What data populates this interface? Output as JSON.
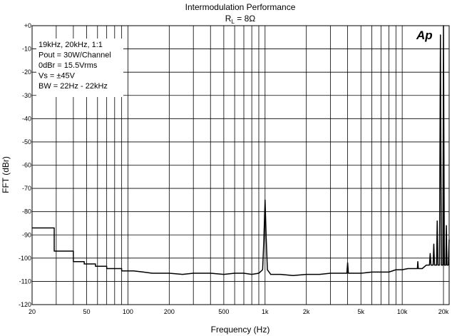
{
  "chart_data": {
    "type": "line",
    "title": "Intermodulation Performance",
    "subtitle_main": "R",
    "subtitle_sub": "L",
    "subtitle_rest": " = 8Ω",
    "xlabel": "Frequency (Hz)",
    "ylabel": "FFT (dBr)",
    "xscale": "log",
    "xlim": [
      20,
      22000
    ],
    "ylim": [
      -120,
      0
    ],
    "grid": true,
    "logo": "Ap",
    "annotations": [
      "19kHz, 20kHz, 1:1",
      "Pout = 30W/Channel",
      "0dBr = 15.5Vrms",
      "Vs = ±45V",
      "BW = 22Hz - 22kHz"
    ],
    "x_ticks": [
      {
        "value": 20,
        "label": "20"
      },
      {
        "value": 50,
        "label": "50"
      },
      {
        "value": 100,
        "label": "100"
      },
      {
        "value": 200,
        "label": "200"
      },
      {
        "value": 500,
        "label": "500"
      },
      {
        "value": 1000,
        "label": "1k"
      },
      {
        "value": 2000,
        "label": "2k"
      },
      {
        "value": 5000,
        "label": "5k"
      },
      {
        "value": 10000,
        "label": "10k"
      },
      {
        "value": 20000,
        "label": "20k"
      }
    ],
    "y_ticks": [
      {
        "value": 0,
        "label": "+0"
      },
      {
        "value": -10,
        "label": "-10"
      },
      {
        "value": -20,
        "label": "-20"
      },
      {
        "value": -30,
        "label": "-30"
      },
      {
        "value": -40,
        "label": "-40"
      },
      {
        "value": -50,
        "label": "-50"
      },
      {
        "value": -60,
        "label": "-60"
      },
      {
        "value": -70,
        "label": "-70"
      },
      {
        "value": -80,
        "label": "-80"
      },
      {
        "value": -90,
        "label": "-90"
      },
      {
        "value": -100,
        "label": "-100"
      },
      {
        "value": -110,
        "label": "-110"
      },
      {
        "value": -120,
        "label": "-120"
      }
    ],
    "series": [
      {
        "color": "#000000",
        "points": [
          [
            20,
            -87
          ],
          [
            29,
            -87
          ],
          [
            29,
            -97
          ],
          [
            40,
            -97
          ],
          [
            40,
            -101.5
          ],
          [
            48,
            -101.5
          ],
          [
            48,
            -102.5
          ],
          [
            58,
            -102.5
          ],
          [
            58,
            -103.5
          ],
          [
            70,
            -103.5
          ],
          [
            70,
            -104.5
          ],
          [
            90,
            -104.5
          ],
          [
            90,
            -105.5
          ],
          [
            110,
            -105.5
          ],
          [
            130,
            -106
          ],
          [
            150,
            -106.5
          ],
          [
            200,
            -106.5
          ],
          [
            250,
            -107
          ],
          [
            300,
            -106.5
          ],
          [
            400,
            -106.5
          ],
          [
            500,
            -107
          ],
          [
            600,
            -106.5
          ],
          [
            700,
            -106.5
          ],
          [
            800,
            -107
          ],
          [
            900,
            -106.5
          ],
          [
            960,
            -105
          ],
          [
            980,
            -92
          ],
          [
            1000,
            -75
          ],
          [
            1020,
            -92
          ],
          [
            1040,
            -105
          ],
          [
            1100,
            -107
          ],
          [
            1300,
            -107
          ],
          [
            1600,
            -107.5
          ],
          [
            2000,
            -107
          ],
          [
            2500,
            -107
          ],
          [
            3000,
            -106.5
          ],
          [
            3500,
            -106.5
          ],
          [
            3950,
            -106.5
          ],
          [
            4000,
            -102
          ],
          [
            4050,
            -106.5
          ],
          [
            5000,
            -106.5
          ],
          [
            6000,
            -106
          ],
          [
            7000,
            -106
          ],
          [
            8000,
            -106
          ],
          [
            9000,
            -105
          ],
          [
            10000,
            -105
          ],
          [
            11000,
            -104.5
          ],
          [
            12000,
            -104.5
          ],
          [
            12900,
            -104.5
          ],
          [
            13000,
            -101.5
          ],
          [
            13100,
            -104.5
          ],
          [
            14000,
            -104.5
          ],
          [
            15000,
            -103
          ],
          [
            15800,
            -103
          ],
          [
            16000,
            -98
          ],
          [
            16200,
            -103
          ],
          [
            16800,
            -103
          ],
          [
            17000,
            -94
          ],
          [
            17200,
            -103
          ],
          [
            17800,
            -103
          ],
          [
            18000,
            -84
          ],
          [
            18200,
            -103
          ],
          [
            18700,
            -103
          ],
          [
            19000,
            -4
          ],
          [
            19300,
            -103
          ],
          [
            19800,
            -103
          ],
          [
            20000,
            0
          ],
          [
            20300,
            -103
          ],
          [
            20800,
            -103
          ],
          [
            21000,
            -86
          ],
          [
            21200,
            -103
          ],
          [
            21700,
            -103
          ],
          [
            22000,
            -92
          ]
        ]
      }
    ]
  }
}
